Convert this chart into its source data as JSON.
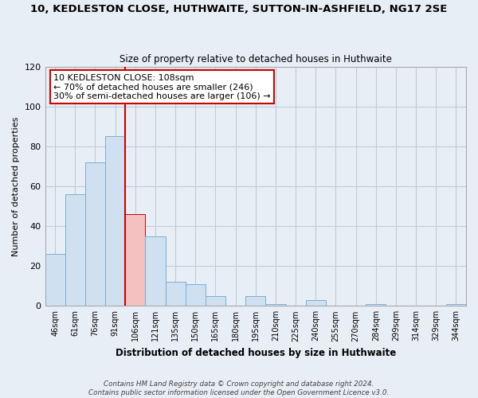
{
  "title": "10, KEDLESTON CLOSE, HUTHWAITE, SUTTON-IN-ASHFIELD, NG17 2SE",
  "subtitle": "Size of property relative to detached houses in Huthwaite",
  "xlabel": "Distribution of detached houses by size in Huthwaite",
  "ylabel": "Number of detached properties",
  "bar_labels": [
    "46sqm",
    "61sqm",
    "76sqm",
    "91sqm",
    "106sqm",
    "121sqm",
    "135sqm",
    "150sqm",
    "165sqm",
    "180sqm",
    "195sqm",
    "210sqm",
    "225sqm",
    "240sqm",
    "255sqm",
    "270sqm",
    "284sqm",
    "299sqm",
    "314sqm",
    "329sqm",
    "344sqm"
  ],
  "bar_values": [
    26,
    56,
    72,
    85,
    46,
    35,
    12,
    11,
    5,
    0,
    5,
    1,
    0,
    3,
    0,
    0,
    1,
    0,
    0,
    0,
    1
  ],
  "bar_color": "#cfe0f0",
  "bar_edge_color": "#7bafd4",
  "highlight_index": 4,
  "highlight_color": "#f4c0c0",
  "highlight_edge_color": "#cc0000",
  "vline_x": 3.5,
  "vline_color": "#cc0000",
  "annotation_line1": "10 KEDLESTON CLOSE: 108sqm",
  "annotation_line2": "← 70% of detached houses are smaller (246)",
  "annotation_line3": "30% of semi-detached houses are larger (106) →",
  "ylim": [
    0,
    120
  ],
  "yticks": [
    0,
    20,
    40,
    60,
    80,
    100,
    120
  ],
  "footer1": "Contains HM Land Registry data © Crown copyright and database right 2024.",
  "footer2": "Contains public sector information licensed under the Open Government Licence v3.0.",
  "bg_color": "#e8eef5",
  "plot_bg_color": "#e8eef5",
  "grid_color": "#c0ccd8"
}
